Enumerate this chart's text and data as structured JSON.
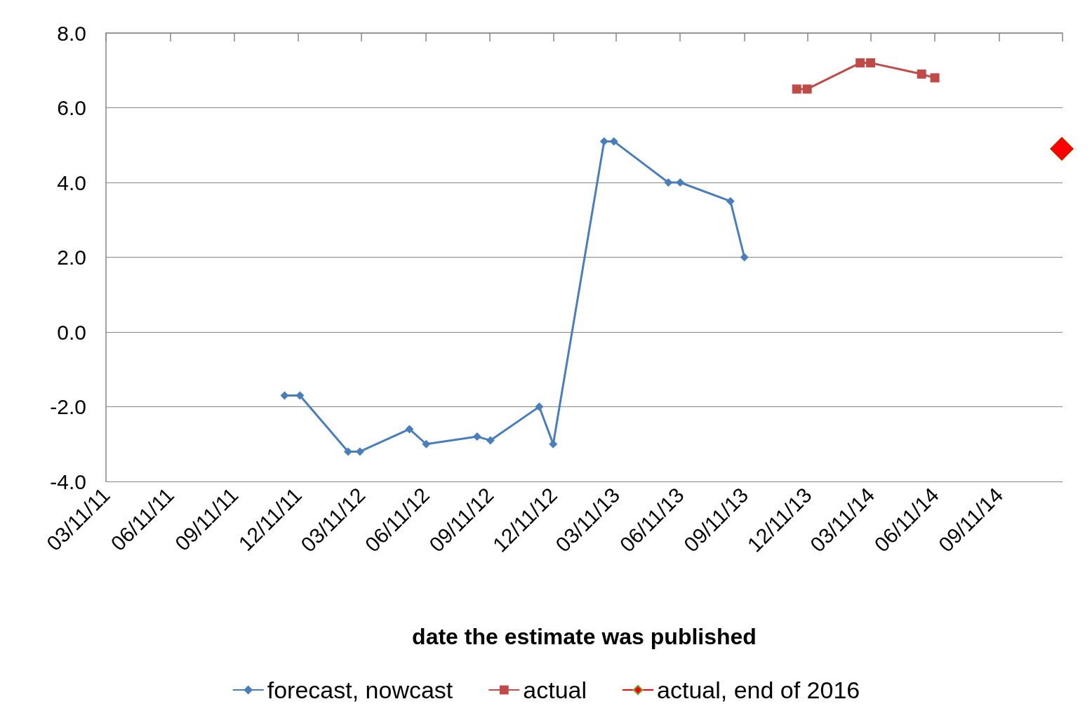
{
  "chart_data": {
    "type": "line",
    "xlabel": "date the estimate was published",
    "xlim": [
      "2011-03-11",
      "2014-12-11"
    ],
    "xticks": [
      {
        "value": "2011-03-11",
        "label": "03/11/11"
      },
      {
        "value": "2011-06-11",
        "label": "06/11/11"
      },
      {
        "value": "2011-09-11",
        "label": "09/11/11"
      },
      {
        "value": "2011-12-11",
        "label": "12/11/11"
      },
      {
        "value": "2012-03-11",
        "label": "03/11/12"
      },
      {
        "value": "2012-06-11",
        "label": "06/11/12"
      },
      {
        "value": "2012-09-11",
        "label": "09/11/12"
      },
      {
        "value": "2012-12-11",
        "label": "12/11/12"
      },
      {
        "value": "2013-03-11",
        "label": "03/11/13"
      },
      {
        "value": "2013-06-11",
        "label": "06/11/13"
      },
      {
        "value": "2013-09-11",
        "label": "09/11/13"
      },
      {
        "value": "2013-12-11",
        "label": "12/11/13"
      },
      {
        "value": "2014-03-11",
        "label": "03/11/14"
      },
      {
        "value": "2014-06-11",
        "label": "06/11/14"
      },
      {
        "value": "2014-09-11",
        "label": "09/11/14"
      },
      {
        "value": "2014-12-11",
        "label": null
      }
    ],
    "ylim": [
      -4,
      8
    ],
    "yticks": [
      {
        "value": -4,
        "label": "-4.0"
      },
      {
        "value": -2,
        "label": "-2.0"
      },
      {
        "value": 0,
        "label": "0.0"
      },
      {
        "value": 2,
        "label": "2.0"
      },
      {
        "value": 4,
        "label": "4.0"
      },
      {
        "value": 6,
        "label": "6.0"
      },
      {
        "value": 8,
        "label": "8.0"
      }
    ],
    "grid": "y",
    "legend": "bottom",
    "series": [
      {
        "name": "forecast, nowcast",
        "color": "#4a7ebb",
        "marker": "diamond",
        "x": [
          "2011-11-22",
          "2011-12-14",
          "2012-02-21",
          "2012-03-09",
          "2012-05-19",
          "2012-06-12",
          "2012-08-24",
          "2012-09-12",
          "2012-11-21",
          "2012-12-11",
          "2013-02-22",
          "2013-03-08",
          "2013-05-25",
          "2013-06-11",
          "2013-08-22",
          "2013-09-11"
        ],
        "values": [
          -1.7,
          -1.7,
          -3.2,
          -3.2,
          -2.6,
          -3.0,
          -2.8,
          -2.9,
          -2.0,
          -3.0,
          5.1,
          5.1,
          4.0,
          4.0,
          3.5,
          2.0
        ]
      },
      {
        "name": "actual",
        "color": "#be4b48",
        "marker": "square",
        "x": [
          "2013-11-25",
          "2013-12-10",
          "2014-02-24",
          "2014-03-11",
          "2014-05-23",
          "2014-06-11"
        ],
        "values": [
          6.5,
          6.5,
          7.2,
          7.2,
          6.9,
          6.8
        ]
      },
      {
        "name": "actual, end of 2016",
        "color": "#ff0000",
        "marker": "diamond",
        "x": [
          "2014-12-10"
        ],
        "values": [
          4.9
        ]
      }
    ]
  }
}
